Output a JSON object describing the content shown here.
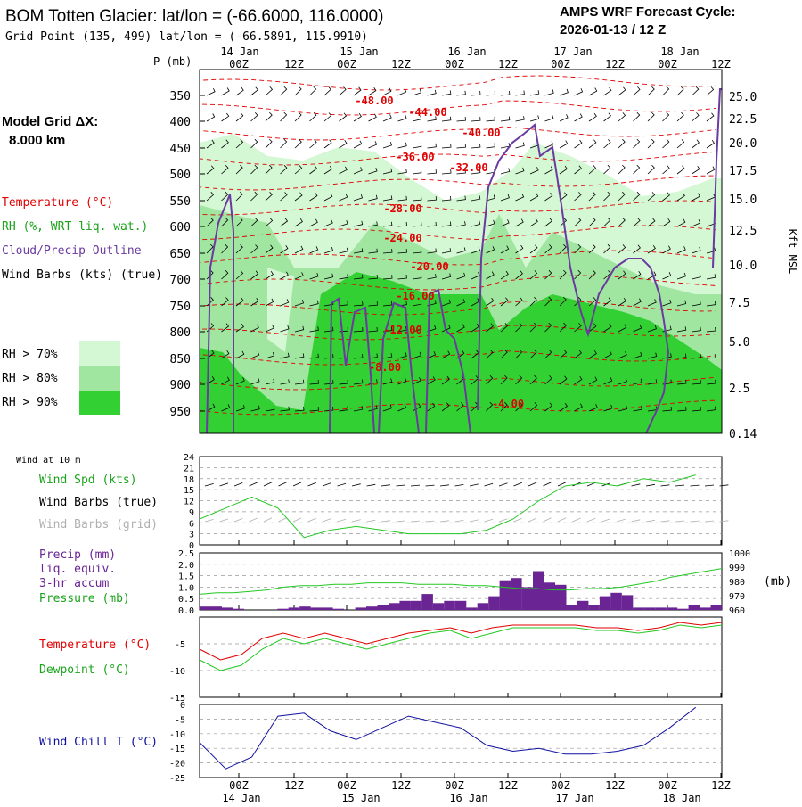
{
  "header": {
    "title": "BOM Totten Glacier:  lat/lon = (-66.6000, 116.0000)",
    "grid_point": "Grid Point (135, 499) lat/lon = (-66.5891, 115.9910)",
    "cycle_label": "AMPS WRF Forecast Cycle:",
    "cycle_value": "2026-01-13 / 12  Z"
  },
  "legend": {
    "model_grid_label": "Model Grid ΔX:",
    "model_grid_value": "8.000 km",
    "temperature": "Temperature (°C)",
    "rh": "RH (%, WRT liq. wat.)",
    "cloud": "Cloud/Precip Outline",
    "wind_barbs": "Wind Barbs (kts) (true)",
    "rh70": "RH > 70%",
    "rh80": "RH > 80%",
    "rh90": "RH > 90%"
  },
  "colors": {
    "temperature": "#e00000",
    "rh_label": "#1aa31a",
    "cloud": "#6a3aa0",
    "rh70": "#d4f7d4",
    "rh80": "#a0e6a0",
    "rh90": "#33d033",
    "precip": "#6a2494",
    "dewpoint": "#22c822",
    "windchill": "#1010a0"
  },
  "time_axis": {
    "top_ticks": [
      "00Z",
      "12Z",
      "00Z",
      "12Z",
      "00Z",
      "12Z",
      "00Z",
      "12Z",
      "00Z",
      "12Z"
    ],
    "top_dates": [
      "14 Jan",
      "15 Jan",
      "16 Jan",
      "17 Jan",
      "18 Jan"
    ],
    "bottom_ticks": [
      "00Z",
      "12Z",
      "00Z",
      "12Z",
      "00Z",
      "12Z",
      "00Z",
      "12Z",
      "00Z",
      "12Z"
    ],
    "bottom_dates": [
      "14 Jan",
      "15 Jan",
      "16 Jan",
      "17 Jan",
      "18 Jan"
    ]
  },
  "chart_data": [
    {
      "type": "heatmap",
      "title": "Vertical cross-section (time-height)",
      "ylabel": "P (mb)",
      "ylabel_right": "Kft MSL",
      "pressure_ticks": [
        "350",
        "400",
        "450",
        "500",
        "550",
        "600",
        "650",
        "700",
        "750",
        "800",
        "850",
        "900",
        "950"
      ],
      "height_ticks": [
        "25.0",
        "22.5",
        "20.0",
        "17.5",
        "15.0",
        "12.5",
        "10.0",
        "7.5",
        "5.0",
        "2.5",
        "0.14"
      ],
      "temperature_labels": [
        "-48.00",
        "-44.00",
        "-40.00",
        "-36.00",
        "-32.00",
        "-28.00",
        "-24.00",
        "-20.00",
        "-16.00",
        "-12.00",
        "-8.00",
        "-4.00"
      ]
    },
    {
      "type": "line",
      "panel_note": "Wind at 10 m",
      "series_labels": [
        "Wind Spd (kts)",
        "Wind Barbs (true)",
        "Wind Barbs (grid)"
      ],
      "y_ticks": [
        "24",
        "21",
        "18",
        "15",
        "12",
        "9",
        "6",
        "3",
        "0"
      ],
      "ylim": [
        0,
        24
      ],
      "x_hours": [
        0,
        6,
        12,
        18,
        24,
        30,
        36,
        42,
        48,
        54,
        60,
        66,
        72,
        78,
        84,
        90,
        96,
        102,
        108,
        114
      ],
      "wind_speed": [
        7,
        10,
        13,
        10,
        2,
        4,
        5,
        4,
        3,
        3,
        3,
        4,
        7,
        12,
        16,
        17,
        16,
        18,
        17,
        19
      ]
    },
    {
      "type": "bar",
      "series_labels": [
        "Precip (mm)",
        "liq. equiv.",
        "3-hr accum",
        "Pressure (mb)"
      ],
      "y_ticks_left": [
        "2.5",
        "2.0",
        "1.5",
        "1.0",
        "0.5",
        "0.0"
      ],
      "y_ticks_right": [
        "1000",
        "990",
        "980",
        "970",
        "960"
      ],
      "right_unit": "(mb)",
      "precip": [
        0.15,
        0.15,
        0.1,
        0.05,
        0.0,
        0.0,
        0.0,
        0.05,
        0.1,
        0.15,
        0.1,
        0.1,
        0.05,
        0.0,
        0.1,
        0.15,
        0.2,
        0.3,
        0.4,
        0.4,
        0.7,
        0.3,
        0.4,
        0.4,
        0.1,
        0.3,
        0.6,
        1.3,
        1.4,
        1.0,
        1.7,
        1.2,
        1.1,
        0.2,
        0.4,
        0.2,
        0.6,
        0.75,
        0.65,
        0.1,
        0.1,
        0.1,
        0.1,
        0.05,
        0.2,
        0.1,
        0.2
      ],
      "pressure": [
        971,
        972,
        972,
        973,
        974,
        976,
        977,
        977,
        978,
        978,
        979,
        979,
        979,
        978,
        978,
        978,
        977,
        977,
        976,
        975,
        975,
        974,
        974,
        975,
        975,
        976,
        978,
        980,
        983,
        985,
        987,
        989
      ]
    },
    {
      "type": "line",
      "series_labels": [
        "Temperature (°C)",
        "Dewpoint (°C)"
      ],
      "y_ticks": [
        "-5",
        "-10",
        "-15"
      ],
      "ylim": [
        -15,
        0
      ],
      "temperature": [
        -6,
        -8,
        -7,
        -4,
        -3,
        -4,
        -3,
        -4,
        -5,
        -4,
        -3,
        -2.5,
        -2,
        -3,
        -2,
        -1.5,
        -1.5,
        -1.5,
        -1.5,
        -2,
        -2,
        -2.5,
        -2,
        -1,
        -1.5,
        -1
      ],
      "dewpoint": [
        -8,
        -10,
        -9,
        -6,
        -4,
        -5,
        -4,
        -5,
        -6,
        -5,
        -4,
        -3,
        -2.5,
        -4,
        -3,
        -2,
        -2,
        -2,
        -2,
        -2.5,
        -2.5,
        -3,
        -2.5,
        -1.5,
        -2,
        -1.5
      ]
    },
    {
      "type": "line",
      "series_labels": [
        "Wind Chill T (°C)"
      ],
      "y_ticks": [
        "-5",
        "-10",
        "-15",
        "-20",
        "-25"
      ],
      "y_zero_label": "0",
      "ylim": [
        -25,
        0
      ],
      "x_hours": [
        0,
        6,
        12,
        18,
        24,
        30,
        36,
        42,
        48,
        54,
        60,
        66,
        72,
        78,
        84,
        90,
        96,
        102,
        108,
        114
      ],
      "windchill": [
        -13,
        -22,
        -18,
        -4,
        -3,
        -9,
        -12,
        -8,
        -4,
        -6,
        -8,
        -14,
        -16,
        -15,
        -17,
        -17,
        -16,
        -14,
        -8,
        -1
      ]
    }
  ]
}
